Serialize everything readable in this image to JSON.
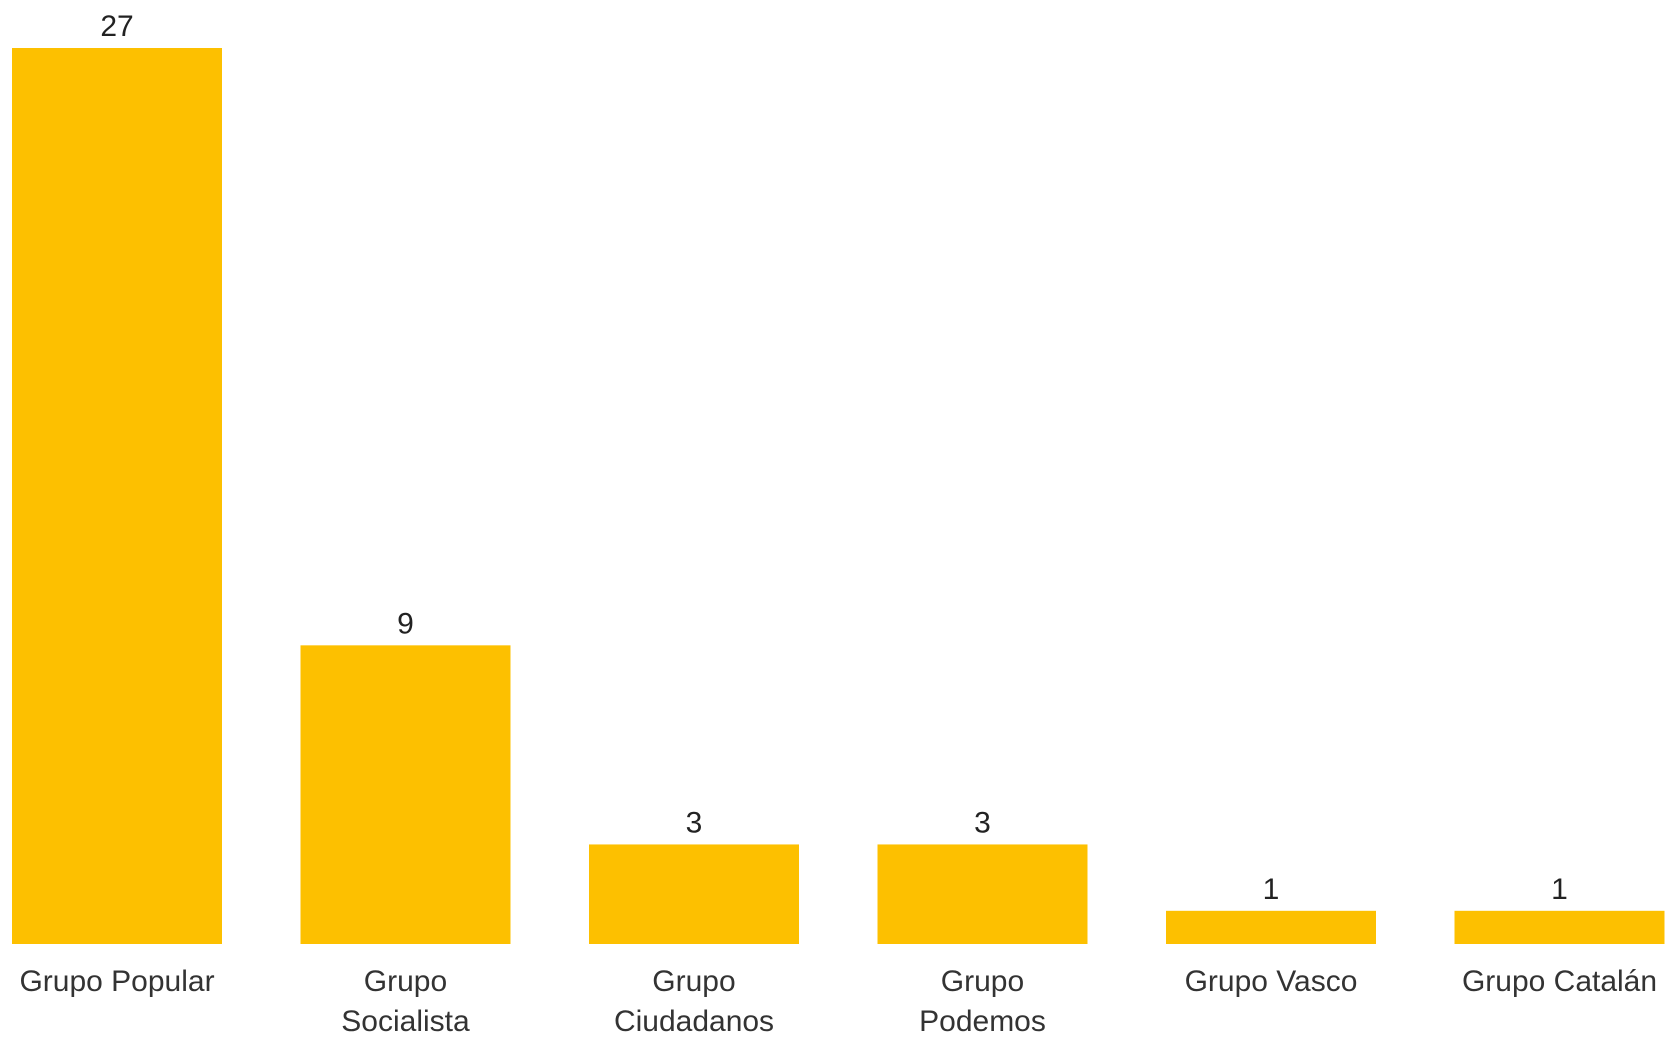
{
  "chart_data": {
    "type": "bar",
    "categories": [
      "Grupo Popular",
      "Grupo Socialista",
      "Grupo Ciudadanos",
      "Grupo Podemos",
      "Grupo Vasco",
      "Grupo Catalán"
    ],
    "category_lines": [
      [
        "Grupo Popular"
      ],
      [
        "Grupo",
        "Socialista"
      ],
      [
        "Grupo",
        "Ciudadanos"
      ],
      [
        "Grupo",
        "Podemos"
      ],
      [
        "Grupo Vasco"
      ],
      [
        "Grupo Catalán"
      ]
    ],
    "values": [
      27,
      9,
      3,
      3,
      1,
      1
    ],
    "value_labels": [
      "27",
      "9",
      "3",
      "3",
      "1",
      "1"
    ],
    "title": "",
    "xlabel": "",
    "ylabel": "",
    "ylim": [
      0,
      27
    ],
    "grid": false,
    "legend": "none",
    "bar_color": "#FDC000"
  }
}
